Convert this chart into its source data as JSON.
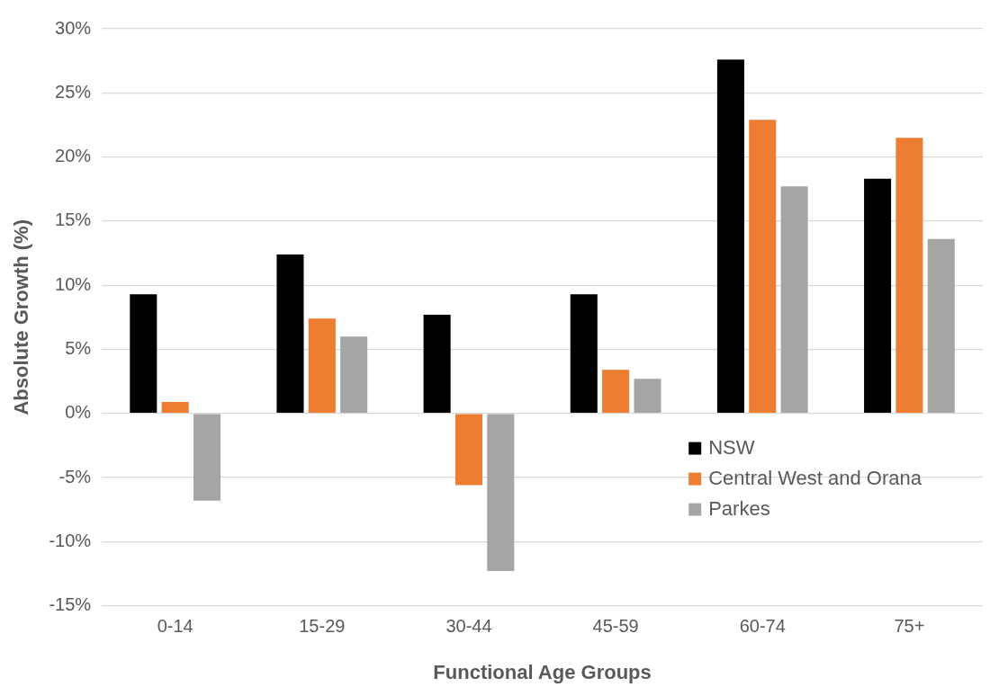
{
  "chart_data": {
    "type": "bar",
    "xlabel": "Functional Age Groups",
    "ylabel": "Absolute Growth (%)",
    "categories": [
      "0-14",
      "15-29",
      "30-44",
      "45-59",
      "60-74",
      "75+"
    ],
    "series": [
      {
        "name": "NSW",
        "color": "#000000",
        "values": [
          9.3,
          12.4,
          7.7,
          9.3,
          27.6,
          18.3
        ]
      },
      {
        "name": "Central West and Orana",
        "color": "#ed7d31",
        "values": [
          0.9,
          7.4,
          -5.6,
          3.4,
          22.9,
          21.5
        ]
      },
      {
        "name": "Parkes",
        "color": "#a5a5a5",
        "values": [
          -6.8,
          6.0,
          -12.3,
          2.7,
          17.7,
          13.6
        ]
      }
    ],
    "ylim": [
      -15,
      30
    ],
    "yticks": [
      {
        "value": -15,
        "label": "-15%"
      },
      {
        "value": -10,
        "label": "-10%"
      },
      {
        "value": -5,
        "label": "-5%"
      },
      {
        "value": 0,
        "label": "0%"
      },
      {
        "value": 5,
        "label": "5%"
      },
      {
        "value": 10,
        "label": "10%"
      },
      {
        "value": 15,
        "label": "15%"
      },
      {
        "value": 20,
        "label": "20%"
      },
      {
        "value": 25,
        "label": "25%"
      },
      {
        "value": 30,
        "label": "30%"
      }
    ],
    "grid": "y",
    "legend": "bottom right"
  }
}
